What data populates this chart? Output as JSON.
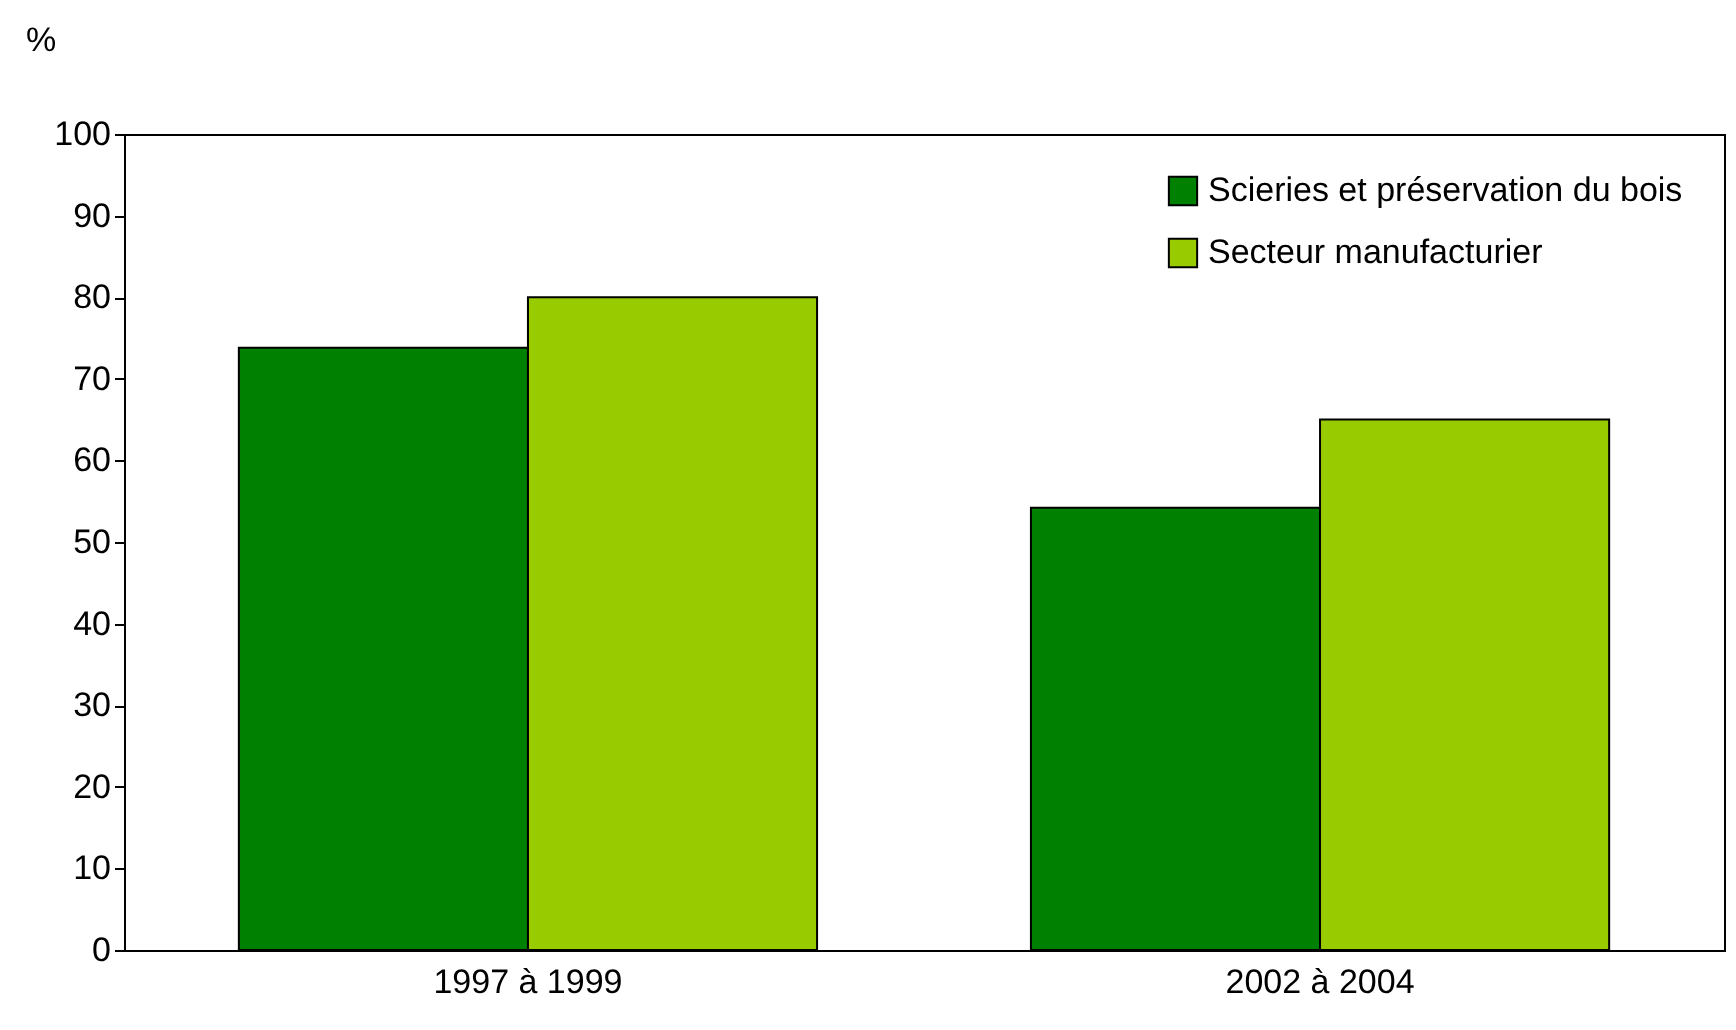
{
  "chart_data": {
    "type": "bar",
    "ylabel": "%",
    "categories": [
      "1997 à 1999",
      "2002 à 2004"
    ],
    "series": [
      {
        "name": "Scieries et préservation du bois",
        "color": "#008000",
        "values": [
          73.8,
          54.2
        ]
      },
      {
        "name": "Secteur manufacturier",
        "color": "#99cc00",
        "values": [
          80,
          65
        ]
      }
    ],
    "ylim": [
      0,
      100
    ],
    "yticks": [
      0,
      10,
      20,
      30,
      40,
      50,
      60,
      70,
      80,
      90,
      100
    ],
    "grid": false,
    "legend": "top right"
  }
}
